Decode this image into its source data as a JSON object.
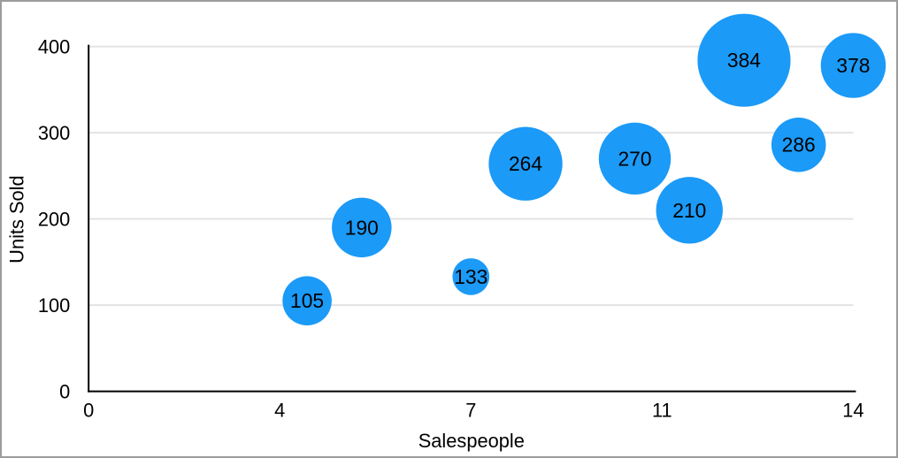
{
  "chart_data": {
    "type": "bubble",
    "title": "",
    "xlabel": "Salespeople",
    "ylabel": "Units Sold",
    "xlim": [
      0,
      14
    ],
    "ylim": [
      0,
      400
    ],
    "grid": "horizontal-only",
    "legend": "none",
    "x_ticks": [
      {
        "pos": 0,
        "label": "0"
      },
      {
        "pos": 3.5,
        "label": "4"
      },
      {
        "pos": 7,
        "label": "7"
      },
      {
        "pos": 10.5,
        "label": "11"
      },
      {
        "pos": 14,
        "label": "14"
      }
    ],
    "y_ticks": [
      {
        "value": 0,
        "label": "0"
      },
      {
        "value": 100,
        "label": "100"
      },
      {
        "value": 200,
        "label": "200"
      },
      {
        "value": 300,
        "label": "300"
      },
      {
        "value": 400,
        "label": "400"
      }
    ],
    "points": [
      {
        "x": 4,
        "y": 105,
        "label": "105",
        "radius_px": 28
      },
      {
        "x": 5,
        "y": 190,
        "label": "190",
        "radius_px": 34
      },
      {
        "x": 7,
        "y": 133,
        "label": "133",
        "radius_px": 21
      },
      {
        "x": 8,
        "y": 264,
        "label": "264",
        "radius_px": 42
      },
      {
        "x": 10,
        "y": 270,
        "label": "270",
        "radius_px": 41
      },
      {
        "x": 11,
        "y": 210,
        "label": "210",
        "radius_px": 38
      },
      {
        "x": 12,
        "y": 384,
        "label": "384",
        "radius_px": 53
      },
      {
        "x": 13,
        "y": 286,
        "label": "286",
        "radius_px": 31
      },
      {
        "x": 14,
        "y": 378,
        "label": "378",
        "radius_px": 37
      }
    ],
    "colors": {
      "bubble": "#1b9af7",
      "label_text": "#000000",
      "grid": "#e3e3e3",
      "axis": "#000000",
      "tick_text": "#000000",
      "canvas_border": "#9c9c9c",
      "background": "#ffffff"
    }
  }
}
